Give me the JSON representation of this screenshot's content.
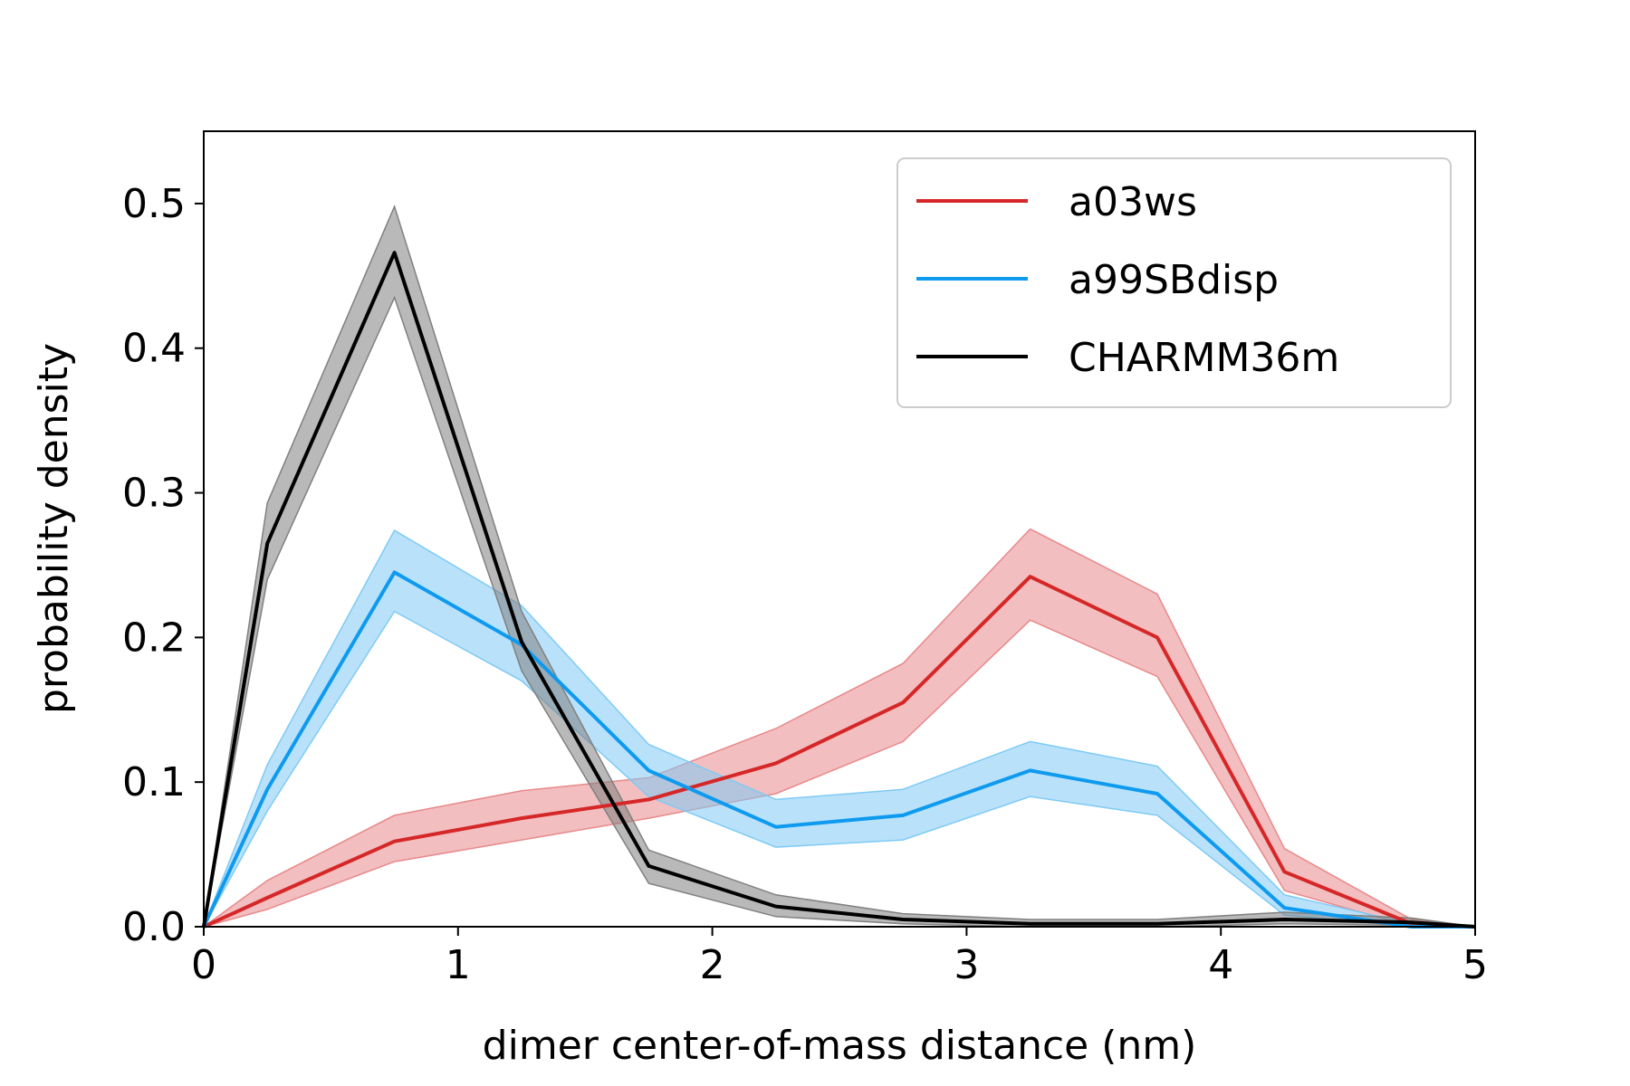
{
  "chart_data": {
    "type": "line",
    "title": "",
    "xlabel": "dimer center-of-mass distance (nm)",
    "ylabel": "probability density",
    "xlim": [
      0,
      5
    ],
    "ylim": [
      0,
      0.55
    ],
    "xticks": [
      0,
      1,
      2,
      3,
      4,
      5
    ],
    "xtick_labels": [
      "0",
      "1",
      "2",
      "3",
      "4",
      "5"
    ],
    "yticks": [
      0.0,
      0.1,
      0.2,
      0.3,
      0.4,
      0.5
    ],
    "ytick_labels": [
      "0.0",
      "0.1",
      "0.2",
      "0.3",
      "0.4",
      "0.5"
    ],
    "grid": false,
    "legend_position": "top-right",
    "x": [
      0,
      0.25,
      0.75,
      1.25,
      1.75,
      2.25,
      2.75,
      3.25,
      3.75,
      4.25,
      4.75,
      5.0
    ],
    "series": [
      {
        "name": "a03ws",
        "color": "#d62728",
        "band_color": "#e8898b",
        "values": [
          0.0,
          0.02,
          0.059,
          0.075,
          0.088,
          0.113,
          0.155,
          0.242,
          0.2,
          0.038,
          0.002,
          0.0
        ],
        "lower": [
          0.0,
          0.012,
          0.045,
          0.06,
          0.075,
          0.092,
          0.128,
          0.212,
          0.173,
          0.025,
          0.0,
          0.0
        ],
        "upper": [
          0.0,
          0.032,
          0.077,
          0.094,
          0.103,
          0.137,
          0.182,
          0.275,
          0.23,
          0.054,
          0.005,
          0.0
        ]
      },
      {
        "name": "a99SBdisp",
        "color": "#0e9aef",
        "band_color": "#7fcaf5",
        "values": [
          0.0,
          0.095,
          0.245,
          0.195,
          0.108,
          0.069,
          0.077,
          0.108,
          0.092,
          0.013,
          0.0,
          0.0
        ],
        "lower": [
          0.0,
          0.08,
          0.218,
          0.17,
          0.09,
          0.055,
          0.06,
          0.09,
          0.077,
          0.008,
          0.0,
          0.0
        ],
        "upper": [
          0.0,
          0.112,
          0.274,
          0.222,
          0.126,
          0.088,
          0.095,
          0.128,
          0.111,
          0.022,
          0.002,
          0.0
        ]
      },
      {
        "name": "CHARMM36m",
        "color": "#000000",
        "band_color": "#808080",
        "values": [
          0.0,
          0.265,
          0.466,
          0.197,
          0.042,
          0.014,
          0.005,
          0.002,
          0.002,
          0.005,
          0.003,
          0.0
        ],
        "lower": [
          0.0,
          0.24,
          0.435,
          0.177,
          0.03,
          0.007,
          0.002,
          0.0,
          0.0,
          0.002,
          0.001,
          0.0
        ],
        "upper": [
          0.0,
          0.293,
          0.498,
          0.218,
          0.053,
          0.022,
          0.009,
          0.005,
          0.005,
          0.01,
          0.006,
          0.0
        ]
      }
    ]
  }
}
